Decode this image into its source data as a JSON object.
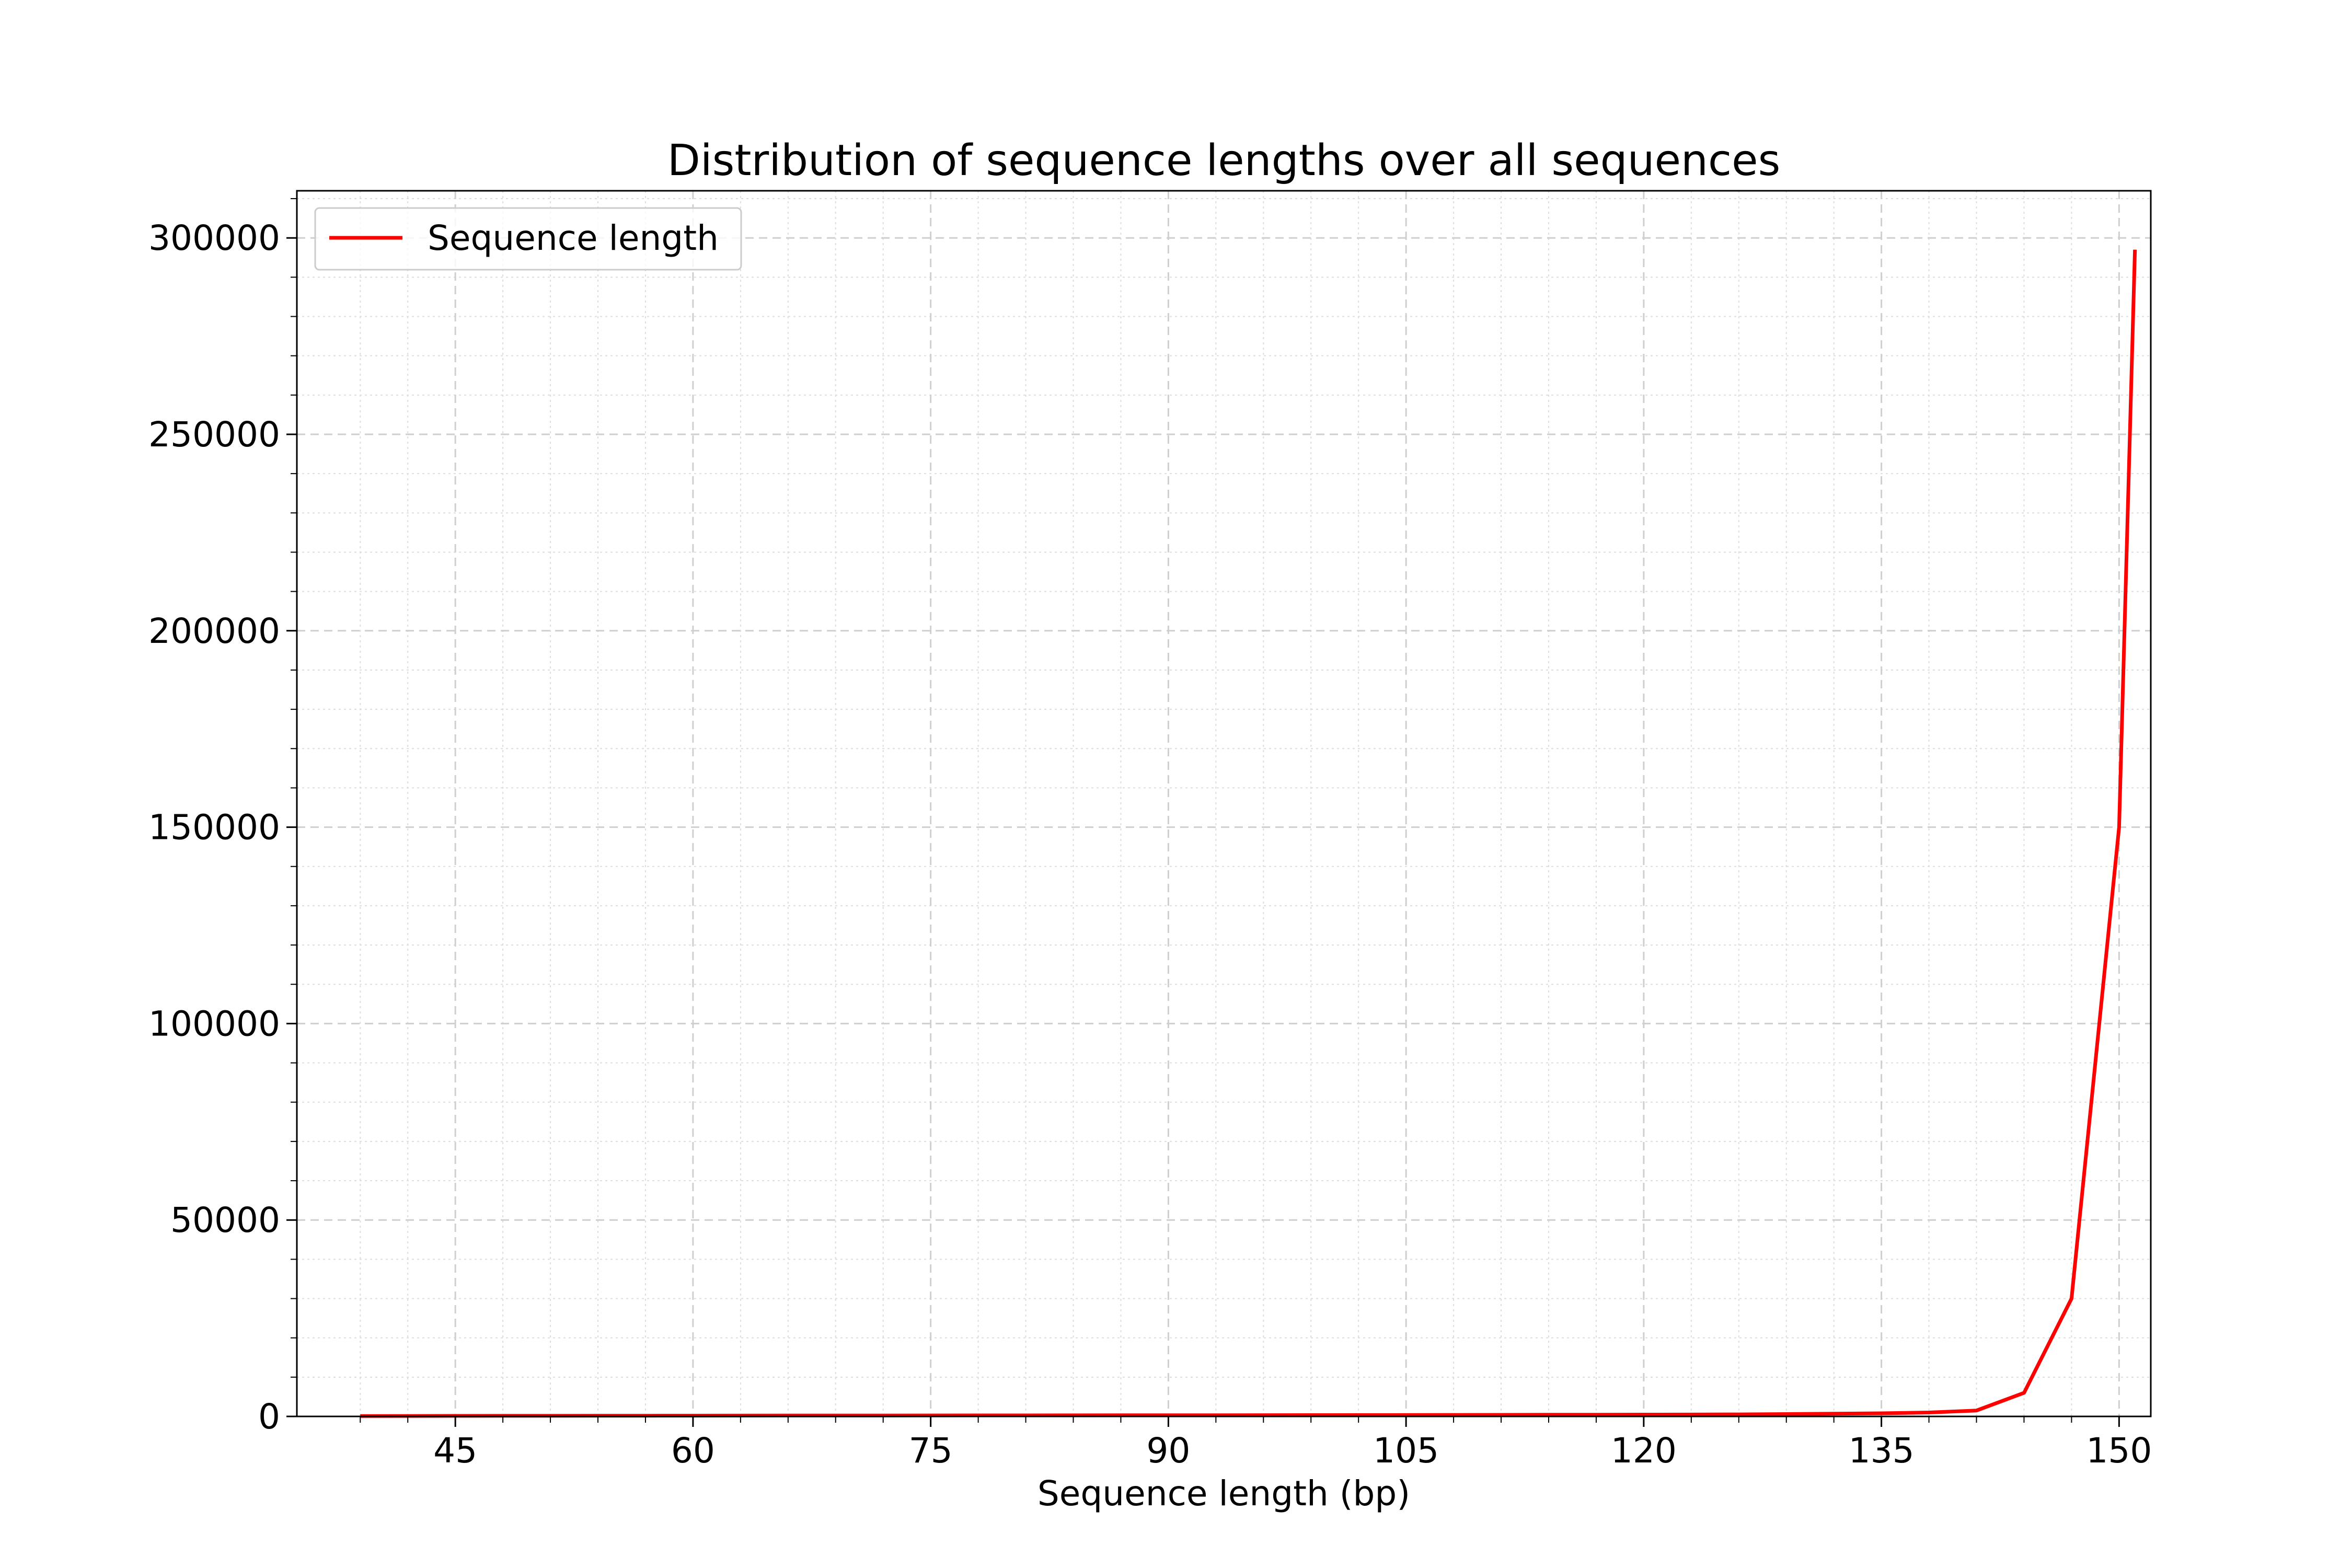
{
  "chart_data": {
    "type": "line",
    "title": "Distribution of sequence lengths over all sequences",
    "xlabel": "Sequence length (bp)",
    "ylabel": "",
    "xlim": [
      35,
      152
    ],
    "ylim": [
      0,
      312000
    ],
    "xticks": [
      45,
      60,
      75,
      90,
      105,
      120,
      135,
      150
    ],
    "yticks": [
      0,
      50000,
      100000,
      150000,
      200000,
      250000,
      300000
    ],
    "grid": true,
    "legend_position": "top-left",
    "series": [
      {
        "name": "Sequence length",
        "color": "#ff0000",
        "x": [
          39,
          42,
          45,
          48,
          51,
          54,
          57,
          60,
          63,
          66,
          69,
          72,
          75,
          78,
          81,
          84,
          87,
          90,
          93,
          96,
          99,
          102,
          105,
          108,
          111,
          114,
          117,
          120,
          123,
          126,
          129,
          132,
          135,
          138,
          141,
          144,
          147,
          150,
          151
        ],
        "y": [
          100,
          120,
          140,
          160,
          170,
          180,
          190,
          200,
          210,
          220,
          230,
          240,
          250,
          260,
          270,
          280,
          290,
          300,
          310,
          320,
          330,
          340,
          360,
          380,
          400,
          420,
          440,
          460,
          480,
          520,
          600,
          700,
          800,
          1000,
          1500,
          6000,
          30000,
          150000,
          297000
        ]
      }
    ]
  }
}
